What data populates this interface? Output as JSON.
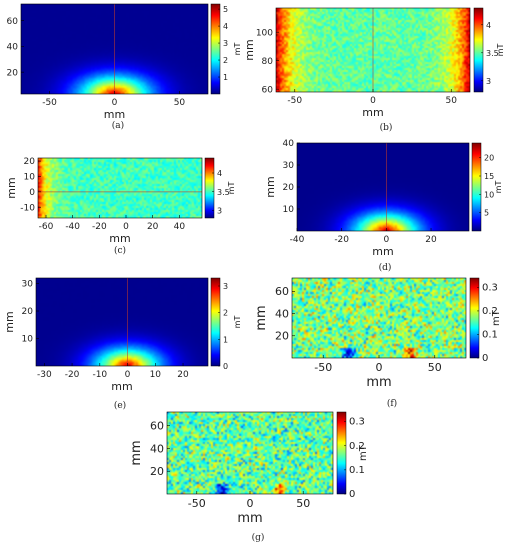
{
  "figure": {
    "panels": [
      {
        "caption": "(a)",
        "chart_data": {
          "type": "heatmap",
          "pattern": "dome",
          "xlabel": "mm",
          "ylabel": "mm",
          "xticks": [
            -50,
            0,
            50
          ],
          "yticks": [
            20,
            40,
            60
          ],
          "xlim": [
            -72,
            72
          ],
          "ylim": [
            3,
            73
          ],
          "colorbar": {
            "label": "mT",
            "ticks": [
              1,
              2,
              3,
              4,
              5
            ],
            "range": [
              0,
              5.3
            ]
          },
          "field": {
            "peak_mT": 5.0,
            "background_mT": 0.1,
            "peak_location": [
              0,
              3
            ]
          },
          "crosshair": {
            "x": 0
          }
        }
      },
      {
        "caption": "(b)",
        "chart_data": {
          "type": "heatmap",
          "pattern": "sides",
          "xlabel": "mm",
          "ylabel": "mm",
          "xticks": [
            -50,
            0,
            50
          ],
          "yticks": [
            60,
            80,
            100
          ],
          "xlim": [
            -62,
            62
          ],
          "ylim": [
            58,
            117
          ],
          "colorbar": {
            "label": "mT",
            "ticks": [
              3,
              3.5,
              4
            ],
            "range": [
              2.8,
              4.3
            ]
          },
          "field": {
            "center_mT": 3.5,
            "edge_mT": 4.2
          },
          "crosshair": {
            "x": 0
          }
        }
      },
      {
        "caption": "(c)",
        "chart_data": {
          "type": "heatmap",
          "pattern": "leftedge",
          "xlabel": "mm",
          "ylabel": "mm",
          "xticks": [
            -60,
            -40,
            -20,
            0,
            20,
            40
          ],
          "yticks": [
            -10,
            0,
            10,
            20
          ],
          "xlim": [
            -66,
            57
          ],
          "ylim": [
            -17,
            22
          ],
          "colorbar": {
            "label": "mT",
            "ticks": [
              3,
              3.5,
              4
            ],
            "range": [
              2.8,
              4.4
            ]
          },
          "field": {
            "center_mT": 3.5,
            "edge_mT": 4.2
          },
          "crosshair": {
            "y": 0
          }
        }
      },
      {
        "caption": "(d)",
        "chart_data": {
          "type": "heatmap",
          "pattern": "dome",
          "xlabel": "mm",
          "ylabel": "mm",
          "xticks": [
            -40,
            -20,
            0,
            20
          ],
          "yticks": [
            10,
            20,
            30,
            40
          ],
          "xlim": [
            -40,
            37
          ],
          "ylim": [
            0,
            40
          ],
          "colorbar": {
            "label": "mT",
            "ticks": [
              5,
              10,
              15,
              20
            ],
            "range": [
              0,
              24
            ]
          },
          "field": {
            "peak_mT": 23,
            "background_mT": 0.3,
            "peak_location": [
              0,
              0
            ]
          },
          "crosshair": {
            "x": 0
          }
        }
      },
      {
        "caption": "(e)",
        "chart_data": {
          "type": "heatmap",
          "pattern": "dome",
          "xlabel": "mm",
          "ylabel": "mm",
          "xticks": [
            -30,
            -20,
            -10,
            0,
            10,
            20
          ],
          "yticks": [
            10,
            20,
            30
          ],
          "xlim": [
            -33,
            29
          ],
          "ylim": [
            0,
            32
          ],
          "colorbar": {
            "label": "mT",
            "ticks": [
              0,
              1,
              2,
              3
            ],
            "range": [
              0,
              3.3
            ]
          },
          "field": {
            "peak_mT": 3.1,
            "background_mT": 0.05,
            "peak_location": [
              0,
              0
            ]
          },
          "crosshair": {
            "x": 0
          }
        }
      },
      {
        "caption": "(f)",
        "chart_data": {
          "type": "heatmap",
          "pattern": "noise",
          "xlabel": "mm",
          "ylabel": "mm",
          "xticks": [
            -50,
            0,
            50
          ],
          "yticks": [
            20,
            40,
            60
          ],
          "xlim": [
            -78,
            78
          ],
          "ylim": [
            0,
            72
          ],
          "colorbar": {
            "label": "mT",
            "ticks": [
              0,
              0.1,
              0.2,
              0.3
            ],
            "range": [
              0,
              0.34
            ]
          },
          "field": {
            "mean_mT": 0.17,
            "spread_mT": 0.05
          },
          "crosshair": null
        }
      },
      {
        "caption": "(g)",
        "chart_data": {
          "type": "heatmap",
          "pattern": "noise",
          "xlabel": "mm",
          "ylabel": "mm",
          "xticks": [
            -50,
            0,
            50
          ],
          "yticks": [
            20,
            40,
            60
          ],
          "xlim": [
            -78,
            78
          ],
          "ylim": [
            0,
            72
          ],
          "colorbar": {
            "label": "mT",
            "ticks": [
              0,
              0.1,
              0.2,
              0.3
            ],
            "range": [
              0,
              0.34
            ]
          },
          "field": {
            "mean_mT": 0.16,
            "spread_mT": 0.05
          },
          "crosshair": null
        }
      }
    ],
    "colors": {
      "crosshair": "#c0392b",
      "axis": "#000000",
      "text": "#222222"
    }
  }
}
